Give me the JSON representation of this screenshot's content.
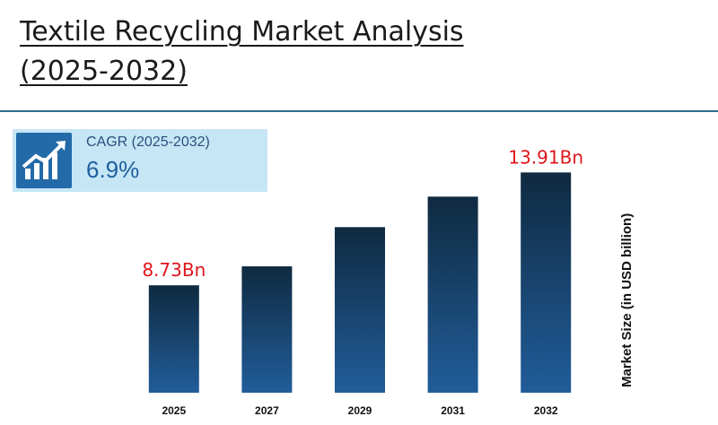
{
  "title": {
    "line1": "Textile Recycling Market Analysis",
    "line2": "(2025-2032)"
  },
  "cagr": {
    "label": "CAGR (2025-2032)",
    "value": "6.9%",
    "icon": "growth-chart-icon"
  },
  "colors": {
    "bar_top": "#0f2a40",
    "bar_bottom": "#215d9a",
    "callout": "#e0151b",
    "accent": "#236aa8",
    "cagr_bg": "#c6e6f6"
  },
  "chart_data": {
    "type": "bar",
    "categories": [
      "2025",
      "2027",
      "2029",
      "2031",
      "2032"
    ],
    "values": [
      8.73,
      9.6,
      11.4,
      12.8,
      13.91
    ],
    "data_labels": [
      "8.73Bn",
      "",
      "",
      "",
      "13.91Bn"
    ],
    "ylabel": "Market Size (in USD billion)",
    "ylim": [
      3.8,
      14.5
    ],
    "grid": false,
    "legend": "none"
  }
}
